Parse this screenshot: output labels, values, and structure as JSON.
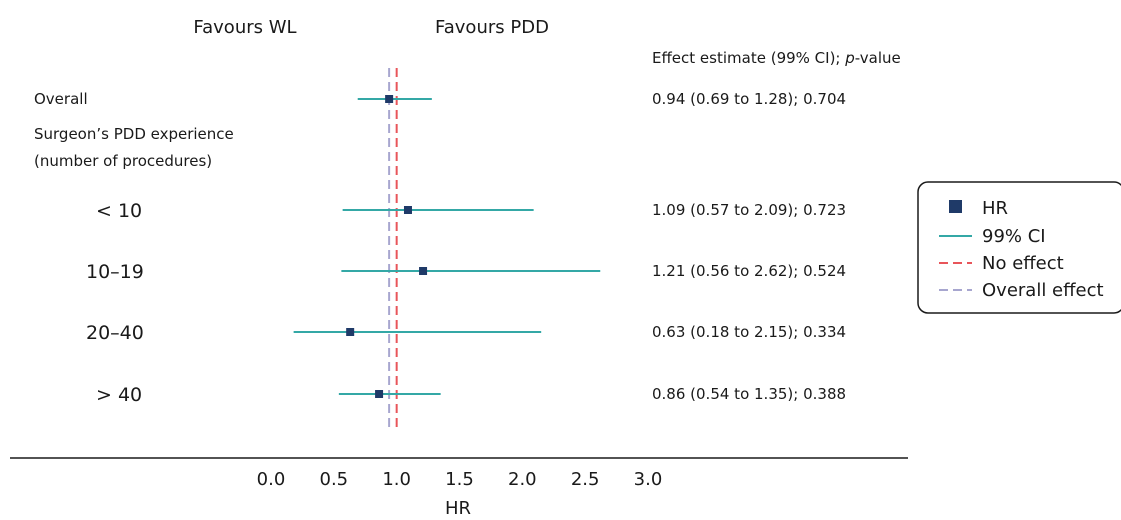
{
  "chart_data": {
    "type": "forest",
    "header_left": "Favours WL",
    "header_right": "Favours PDD",
    "column_header": {
      "prefix": "Effect estimate (99% CI); ",
      "italic": "p",
      "suffix": "-value"
    },
    "section_label_line1": "Surgeon’s PDD experience",
    "section_label_line2": "(number of procedures)",
    "rows": [
      {
        "label": "Overall",
        "hr": 0.94,
        "lo": 0.69,
        "hi": 1.28,
        "text": "0.94 (0.69 to 1.28); 0.704"
      },
      {
        "label": "< 10",
        "hr": 1.09,
        "lo": 0.57,
        "hi": 2.09,
        "text": "1.09 (0.57 to 2.09); 0.723"
      },
      {
        "label": "10–19",
        "hr": 1.21,
        "lo": 0.56,
        "hi": 2.62,
        "text": "1.21 (0.56 to 2.62); 0.524"
      },
      {
        "label": "20–40",
        "hr": 0.63,
        "lo": 0.18,
        "hi": 2.15,
        "text": "0.63 (0.18 to 2.15); 0.334"
      },
      {
        "label": "> 40",
        "hr": 0.86,
        "lo": 0.54,
        "hi": 1.35,
        "text": "0.86 (0.54 to 1.35); 0.388"
      }
    ],
    "no_effect": 1.0,
    "overall_effect": 0.94,
    "xlabel": "HR",
    "xlim": [
      0,
      3
    ],
    "xticks": [
      "0.0",
      "0.5",
      "1.0",
      "1.5",
      "2.0",
      "2.5",
      "3.0"
    ],
    "xtick_values": [
      0,
      0.5,
      1.0,
      1.5,
      2.0,
      2.5,
      3.0
    ],
    "legend": {
      "position": "right",
      "items": [
        {
          "label": "HR",
          "kind": "square"
        },
        {
          "label": "99% CI",
          "kind": "line"
        },
        {
          "label": "No effect",
          "kind": "dashed-red"
        },
        {
          "label": "Overall effect",
          "kind": "dashed-grey"
        }
      ]
    },
    "colors": {
      "point": "#1f3a68",
      "ci": "#34a8a6",
      "no_effect": "#e8555a",
      "overall": "#a7a6cf",
      "axis": "#1a1a1a"
    }
  }
}
